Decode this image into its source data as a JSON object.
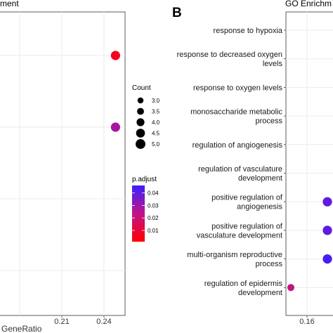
{
  "chart_data": [
    {
      "panel": "",
      "type": "scatter",
      "title": "ment",
      "xlabel": "GeneRatio",
      "x_ticks": [
        0.21,
        0.24
      ],
      "xlim": [
        0.165,
        0.255
      ],
      "categories": [
        "",
        "",
        "",
        ""
      ],
      "points": [
        {
          "row": 0,
          "x": 0.2482,
          "count": 4.0,
          "p_adjust": 0.006
        },
        {
          "row": 1,
          "x": 0.2482,
          "count": 4.0,
          "p_adjust": 0.028
        }
      ]
    },
    {
      "panel": "B",
      "type": "scatter",
      "title": "GO Enrichm",
      "xlabel": "",
      "x_ticks": [
        0.16
      ],
      "xlim": [
        0.145,
        0.185
      ],
      "categories": [
        "response to hypoxia",
        "response to decreased oxygen levels",
        "response to oxygen levels",
        "monosaccharide metabolic process",
        "regulation of angiogenesis",
        "regulation of vasculature development",
        "positive regulation of angiogenesis",
        "positive regulation of vasculature development",
        "multi-organism reproductive process",
        "regulation of epidermis development"
      ],
      "category_lines": [
        [
          "response to hypoxia"
        ],
        [
          "response to decreased oxygen",
          "levels"
        ],
        [
          "response to oxygen levels"
        ],
        [
          "monosaccharide metabolic",
          "process"
        ],
        [
          "regulation of angiogenesis"
        ],
        [
          "regulation of vasculature",
          "development"
        ],
        [
          "positive regulation of",
          "angiogenesis"
        ],
        [
          "positive regulation of",
          "vasculature development"
        ],
        [
          "multi-organism reproductive",
          "process"
        ],
        [
          "regulation of epidermis",
          "development"
        ]
      ],
      "points": [
        {
          "row": 6,
          "x": 0.1745,
          "count": 4.0,
          "p_adjust": 0.04
        },
        {
          "row": 7,
          "x": 0.1745,
          "count": 4.0,
          "p_adjust": 0.04
        },
        {
          "row": 8,
          "x": 0.1745,
          "count": 4.0,
          "p_adjust": 0.044
        },
        {
          "row": 9,
          "x": 0.1485,
          "count": 3.0,
          "p_adjust": 0.022
        }
      ]
    }
  ],
  "legend": {
    "count_title": "Count",
    "count_values": [
      "3.0",
      "3.5",
      "4.0",
      "4.5",
      "5.0"
    ],
    "padjust_title": "p.adjust",
    "padjust_ticks": [
      "0.04",
      "0.03",
      "0.02",
      "0.01"
    ],
    "padjust_tick_values": [
      0.04,
      0.03,
      0.02,
      0.01
    ],
    "padjust_range": [
      0.001,
      0.046
    ],
    "color_low": "#ff0000",
    "color_mid": "#c0148a",
    "color_high": "#3a1fff"
  }
}
